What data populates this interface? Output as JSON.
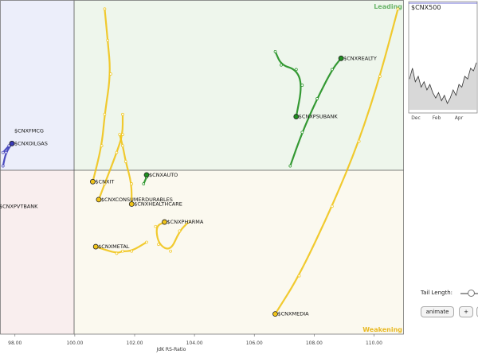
{
  "chart_data": {
    "type": "scatter",
    "title": "",
    "xlabel": "JdK RS-Ratio",
    "ylabel": "",
    "xlim": [
      97.5,
      111
    ],
    "ylim": [
      92.9,
      107.8
    ],
    "x_ticks": [
      "98.00",
      "100.00",
      "102.00",
      "104.00",
      "106.00",
      "108.00",
      "110.00"
    ],
    "x_tick_values": [
      98,
      100,
      102,
      104,
      106,
      108,
      110
    ],
    "center": [
      100,
      100
    ],
    "quadrants": {
      "leading": "Leading",
      "weakening": "Weakening"
    },
    "series": [
      {
        "name": "$CNXFMCG",
        "color": "#3a3ab8",
        "tail": [
          [
            97.6,
            101.0
          ],
          [
            97.8,
            101.3
          ],
          [
            97.9,
            101.4
          ]
        ]
      },
      {
        "name": "$CNXOILGAS",
        "color": "#3a3ab8",
        "tail": [
          [
            97.6,
            100.4
          ],
          [
            97.7,
            101.0
          ],
          [
            97.9,
            101.4
          ]
        ]
      },
      {
        "name": "$CNXPVTBANK",
        "color": "#3a3ab8",
        "tail": []
      },
      {
        "name": "$CNXREALTY",
        "color": "#1f8f1f",
        "tail": [
          [
            107.2,
            100.4
          ],
          [
            107.6,
            101.9
          ],
          [
            108.1,
            103.4
          ],
          [
            108.6,
            104.7
          ],
          [
            108.9,
            105.2
          ]
        ]
      },
      {
        "name": "$CNXPSUBANK",
        "color": "#1f8f1f",
        "tail": [
          [
            106.7,
            105.5
          ],
          [
            106.9,
            104.9
          ],
          [
            107.4,
            104.7
          ],
          [
            107.6,
            104.0
          ],
          [
            107.4,
            102.6
          ]
        ]
      },
      {
        "name": "$CNXAUTO",
        "color": "#1f8f1f",
        "tail": [
          [
            102.3,
            99.6
          ],
          [
            102.4,
            99.9
          ],
          [
            102.4,
            100.0
          ]
        ]
      },
      {
        "name": "$CNXIT",
        "color": "#f0c419",
        "tail": [
          [
            101.0,
            107.4
          ],
          [
            101.1,
            106.0
          ],
          [
            101.2,
            104.5
          ],
          [
            101.0,
            102.7
          ],
          [
            100.9,
            101.3
          ],
          [
            100.6,
            99.7
          ]
        ]
      },
      {
        "name": "$CNXCONSUMERDURABLES",
        "color": "#f0c419",
        "tail": [
          [
            101.6,
            102.7
          ],
          [
            101.6,
            101.8
          ],
          [
            101.4,
            101.0
          ],
          [
            101.0,
            99.6
          ],
          [
            100.8,
            98.9
          ]
        ]
      },
      {
        "name": "$CNXHEALTHCARE",
        "color": "#f0c419",
        "tail": [
          [
            101.5,
            101.8
          ],
          [
            101.6,
            101.3
          ],
          [
            101.7,
            100.6
          ],
          [
            101.9,
            99.6
          ],
          [
            101.9,
            98.7
          ]
        ]
      },
      {
        "name": "$CNXPHARMA",
        "color": "#f0c419",
        "tail": [
          [
            103.8,
            97.9
          ],
          [
            103.5,
            97.5
          ],
          [
            103.2,
            96.6
          ],
          [
            102.8,
            96.9
          ],
          [
            102.7,
            97.7
          ],
          [
            103.0,
            97.9
          ]
        ]
      },
      {
        "name": "$CNXMETAL",
        "color": "#f0c419",
        "tail": [
          [
            102.4,
            97.0
          ],
          [
            101.9,
            96.6
          ],
          [
            101.6,
            96.6
          ],
          [
            101.4,
            96.5
          ],
          [
            100.7,
            96.8
          ]
        ]
      },
      {
        "name": "$CNXMEDIA",
        "color": "#f0c419",
        "tail": [
          [
            110.8,
            107.4
          ],
          [
            110.2,
            104.4
          ],
          [
            109.5,
            101.5
          ],
          [
            108.6,
            98.6
          ],
          [
            107.5,
            95.5
          ],
          [
            106.7,
            93.8
          ]
        ]
      }
    ],
    "grid": false
  },
  "mini_chart": {
    "title": "$CNX500",
    "x_ticks": [
      "Dec",
      "Feb",
      "Apr"
    ],
    "values": [
      10,
      14,
      9,
      11,
      7,
      9,
      6,
      8,
      5,
      3,
      5,
      2,
      4,
      1,
      3,
      6,
      4,
      8,
      7,
      11,
      10,
      14,
      13,
      16
    ]
  },
  "controls": {
    "tail_length_label": "Tail Length:",
    "tail_length_fraction": 0.6,
    "animate_label": "animate",
    "plus_label": "+",
    "minus_label": "-"
  }
}
